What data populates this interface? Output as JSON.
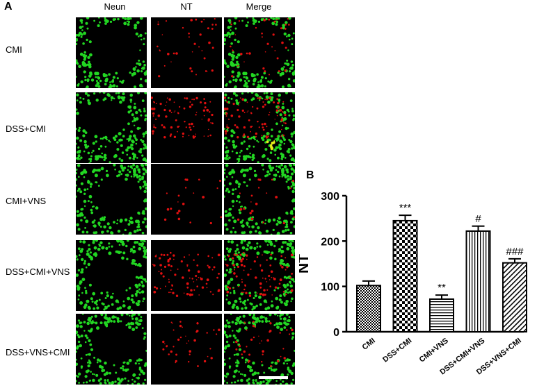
{
  "panel_a": {
    "letter": "A",
    "columns": [
      {
        "label": "Neun",
        "color": "#22c322"
      },
      {
        "label": "NT",
        "color": "#e21a1a"
      },
      {
        "label": "Merge",
        "color": "#000000"
      }
    ],
    "rows": [
      {
        "label": "CMI",
        "red_level": 0.35
      },
      {
        "label": "DSS+CMI",
        "red_level": 0.9
      },
      {
        "label": "CMI+VNS",
        "red_level": 0.2
      },
      {
        "label": "DSS+CMI+VNS",
        "red_level": 0.8
      },
      {
        "label": "DSS+VNS+CMI",
        "red_level": 0.35
      }
    ],
    "colors": {
      "green": "#22d622",
      "red": "#e01010",
      "background": "#000000"
    }
  },
  "panel_b": {
    "letter": "B"
  },
  "chart_data": {
    "type": "bar",
    "ylabel": "NT",
    "ylim": [
      0,
      300
    ],
    "yticks": [
      0,
      100,
      200,
      300
    ],
    "categories": [
      "CMI",
      "DSS+CMI",
      "CMI+VNS",
      "DSS+CMI+VNS",
      "DSS+VNS+CMI"
    ],
    "values": [
      102,
      245,
      72,
      222,
      152
    ],
    "errors": [
      10,
      12,
      9,
      11,
      9
    ],
    "annotations": [
      "",
      "***",
      "**",
      "#",
      "###"
    ],
    "patterns": [
      "dots",
      "checker",
      "hlines",
      "vlines",
      "diagonal"
    ]
  }
}
